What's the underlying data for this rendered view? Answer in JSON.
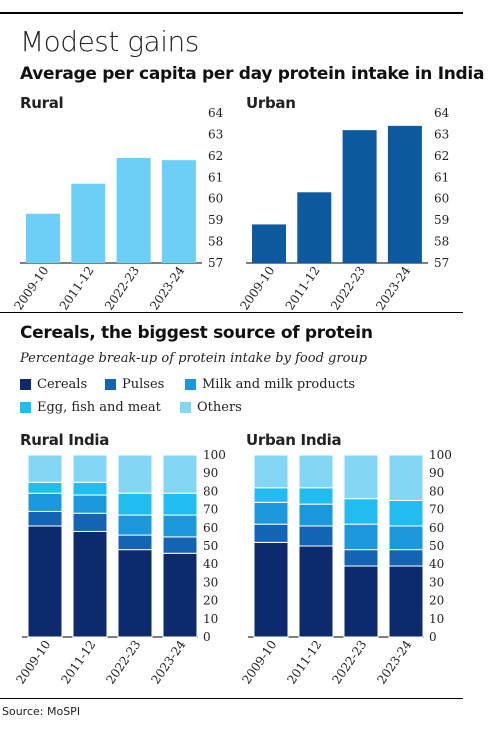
{
  "headline": "Modest gains",
  "source": "Source: MoSPI",
  "section1": {
    "title": "Average per capita per day protein intake in India"
  },
  "section2": {
    "title": "Cereals, the biggest source of protein",
    "subtitle": "Percentage break-up of protein intake by food group"
  },
  "legend": [
    {
      "label": "Cereals",
      "color": "#0d2a6e"
    },
    {
      "label": "Pulses",
      "color": "#1464b4"
    },
    {
      "label": "Milk and milk products",
      "color": "#1b97db"
    },
    {
      "label": "Egg, fish and meat",
      "color": "#21bdf0"
    },
    {
      "label": "Others",
      "color": "#84d6f5"
    }
  ],
  "chart_data": [
    {
      "type": "bar",
      "title": "Rural",
      "categories": [
        "2009-10",
        "2011-12",
        "2022-23",
        "2023-24"
      ],
      "values": [
        59.3,
        60.7,
        61.9,
        61.8
      ],
      "ylim": [
        57,
        64
      ],
      "yticks": [
        57,
        58,
        59,
        60,
        61,
        62,
        63,
        64
      ],
      "color": "#6ecff6"
    },
    {
      "type": "bar",
      "title": "Urban",
      "categories": [
        "2009-10",
        "2011-12",
        "2022-23",
        "2023-24"
      ],
      "values": [
        58.8,
        60.3,
        63.2,
        63.4
      ],
      "ylim": [
        57,
        64
      ],
      "yticks": [
        57,
        58,
        59,
        60,
        61,
        62,
        63,
        64
      ],
      "color": "#0d5a9e"
    },
    {
      "type": "bar",
      "stacked": true,
      "title": "Rural India",
      "categories": [
        "2009-10",
        "2011-12",
        "2022-23",
        "2023-24"
      ],
      "ylim": [
        0,
        100
      ],
      "yticks": [
        0,
        10,
        20,
        30,
        40,
        50,
        60,
        70,
        80,
        90,
        100
      ],
      "series": [
        {
          "name": "Cereals",
          "values": [
            61,
            58,
            48,
            46
          ]
        },
        {
          "name": "Pulses",
          "values": [
            8,
            10,
            8,
            9
          ]
        },
        {
          "name": "Milk and milk products",
          "values": [
            10,
            10,
            11,
            12
          ]
        },
        {
          "name": "Egg, fish and meat",
          "values": [
            6,
            7,
            12,
            12
          ]
        },
        {
          "name": "Others",
          "values": [
            15,
            15,
            21,
            21
          ]
        }
      ]
    },
    {
      "type": "bar",
      "stacked": true,
      "title": "Urban India",
      "categories": [
        "2009-10",
        "2011-12",
        "2022-23",
        "2023-24"
      ],
      "ylim": [
        0,
        100
      ],
      "yticks": [
        0,
        10,
        20,
        30,
        40,
        50,
        60,
        70,
        80,
        90,
        100
      ],
      "series": [
        {
          "name": "Cereals",
          "values": [
            52,
            50,
            39,
            39
          ]
        },
        {
          "name": "Pulses",
          "values": [
            10,
            11,
            9,
            9
          ]
        },
        {
          "name": "Milk and milk products",
          "values": [
            12,
            12,
            14,
            13
          ]
        },
        {
          "name": "Egg, fish and meat",
          "values": [
            8,
            9,
            14,
            14
          ]
        },
        {
          "name": "Others",
          "values": [
            18,
            18,
            24,
            25
          ]
        }
      ]
    }
  ]
}
